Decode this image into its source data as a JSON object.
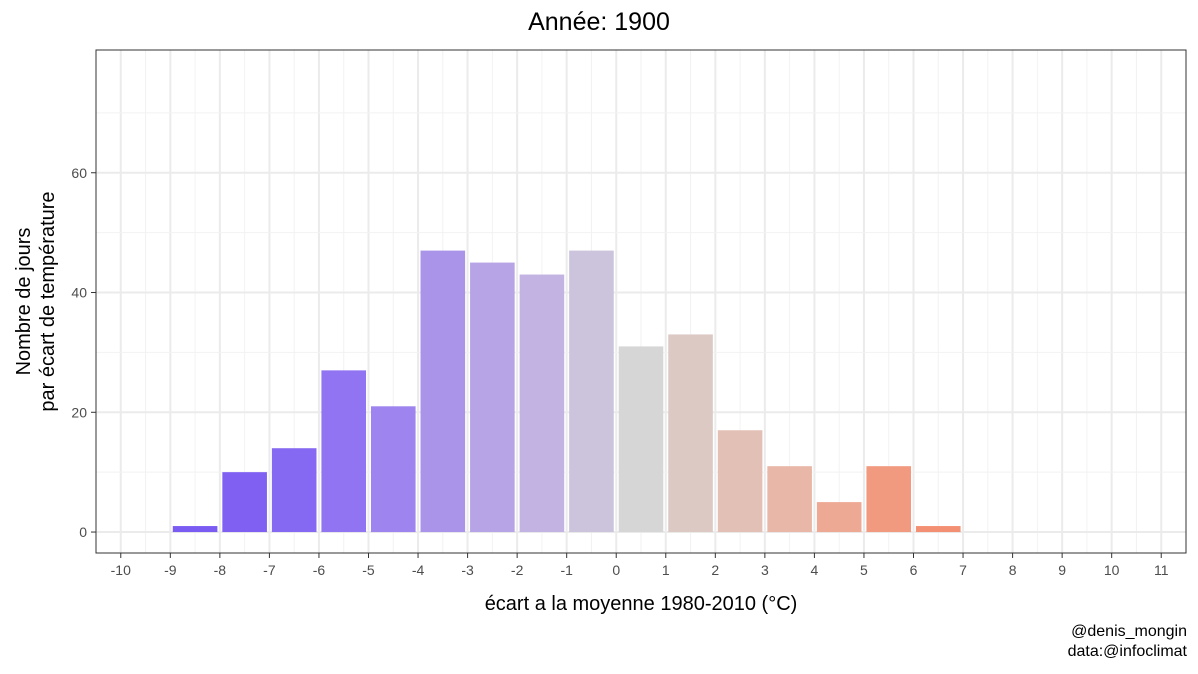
{
  "chart_data": {
    "type": "bar",
    "title": "Année:  1900",
    "xlabel": "écart a la moyenne 1980-2010 (°C)",
    "ylabel": [
      "Nombre de jours",
      "par écart de température"
    ],
    "x_ticks": [
      "-10",
      "-9",
      "-8",
      "-7",
      "-6",
      "-5",
      "-4",
      "-3",
      "-2",
      "-1",
      "0",
      "1",
      "2",
      "3",
      "4",
      "5",
      "6",
      "7",
      "8",
      "9",
      "10",
      "11"
    ],
    "y_ticks": [
      0,
      20,
      40,
      60
    ],
    "xlim": [
      -10.5,
      11.5
    ],
    "ylim": [
      -3.5,
      80.5
    ],
    "grid": true,
    "bars": [
      {
        "x": -8.5,
        "value": 1,
        "color": "#7b5cf3"
      },
      {
        "x": -7.5,
        "value": 10,
        "color": "#7f60f2"
      },
      {
        "x": -6.5,
        "value": 14,
        "color": "#8669f2"
      },
      {
        "x": -5.5,
        "value": 27,
        "color": "#9174f1"
      },
      {
        "x": -4.5,
        "value": 21,
        "color": "#9e84ee"
      },
      {
        "x": -3.5,
        "value": 47,
        "color": "#a994ea"
      },
      {
        "x": -2.5,
        "value": 45,
        "color": "#b7a4e6"
      },
      {
        "x": -1.5,
        "value": 43,
        "color": "#c2b3e2"
      },
      {
        "x": -0.5,
        "value": 47,
        "color": "#ccc3dd"
      },
      {
        "x": 0.5,
        "value": 31,
        "color": "#d6d6d6"
      },
      {
        "x": 1.5,
        "value": 33,
        "color": "#dcc9c4"
      },
      {
        "x": 2.5,
        "value": 17,
        "color": "#e3c0b5"
      },
      {
        "x": 3.5,
        "value": 11,
        "color": "#e8b7a7"
      },
      {
        "x": 4.5,
        "value": 5,
        "color": "#eea994"
      },
      {
        "x": 5.5,
        "value": 11,
        "color": "#f19a80"
      },
      {
        "x": 6.5,
        "value": 1,
        "color": "#f38f72"
      }
    ]
  },
  "caption": {
    "line1": "@denis_mongin",
    "line2": "data:@infoclimat"
  }
}
